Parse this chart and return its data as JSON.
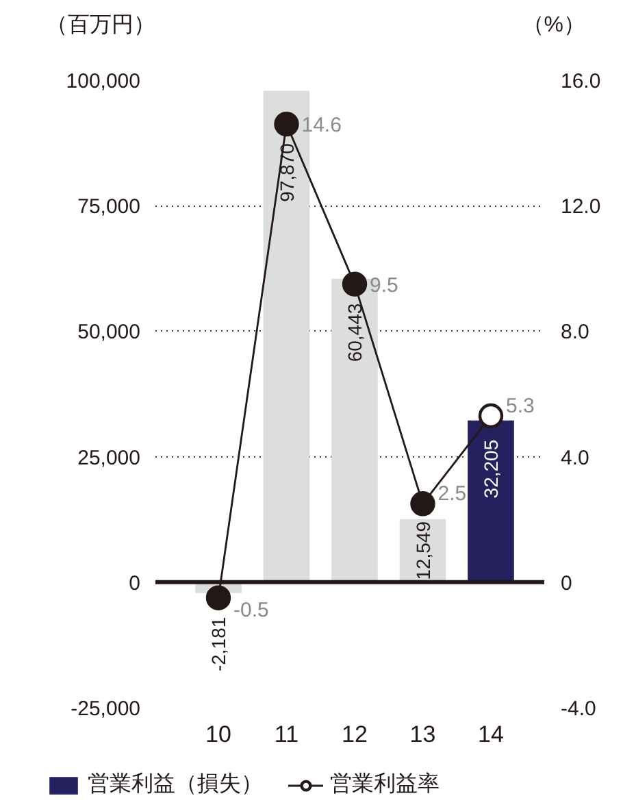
{
  "chart_data": {
    "type": "bar",
    "ylabel": "（百万円）",
    "y2label": "（%）",
    "categories": [
      "10",
      "11",
      "12",
      "13",
      "14"
    ],
    "series": [
      {
        "name": "営業利益（損失）",
        "colors": [
          "#dcdddd",
          "#dcdddd",
          "#dcdddd",
          "#dcdddd",
          "#25215f"
        ],
        "values": [
          -2181,
          97870,
          60443,
          12549,
          32205
        ],
        "value_labels": [
          "-2,181",
          "97,870",
          "60,443",
          "12,549",
          "32,205"
        ]
      },
      {
        "name": "営業利益率",
        "type": "line",
        "axis": "y2",
        "color": "#231815",
        "colors": [
          "#231815",
          "#231815",
          "#231815",
          "#231815",
          "#ffffff"
        ],
        "values": [
          -0.5,
          14.6,
          9.5,
          2.5,
          5.3
        ],
        "value_labels": [
          "-0.5",
          "14.6",
          "9.5",
          "2.5",
          "5.3"
        ]
      }
    ],
    "ylim": [
      -25000,
      100000
    ],
    "yticks": [
      {
        "value": -25000,
        "label": "-25,000"
      },
      0,
      {
        "value": 25000,
        "label": "25,000"
      },
      {
        "value": 50000,
        "label": "50,000"
      },
      {
        "value": 75000,
        "label": "75,000"
      },
      {
        "value": 100000,
        "label": "100,000"
      }
    ],
    "y2lim": [
      -4.0,
      16.0
    ],
    "y2ticks": [
      {
        "value": -4,
        "label": "-4.0"
      },
      0,
      {
        "value": 4,
        "label": "4.0"
      },
      {
        "value": 8,
        "label": "8.0"
      },
      {
        "value": 12,
        "label": "12.0"
      },
      {
        "value": 16,
        "label": "16.0"
      }
    ],
    "grid": "y",
    "legend": "bottom",
    "marker": "circle"
  }
}
